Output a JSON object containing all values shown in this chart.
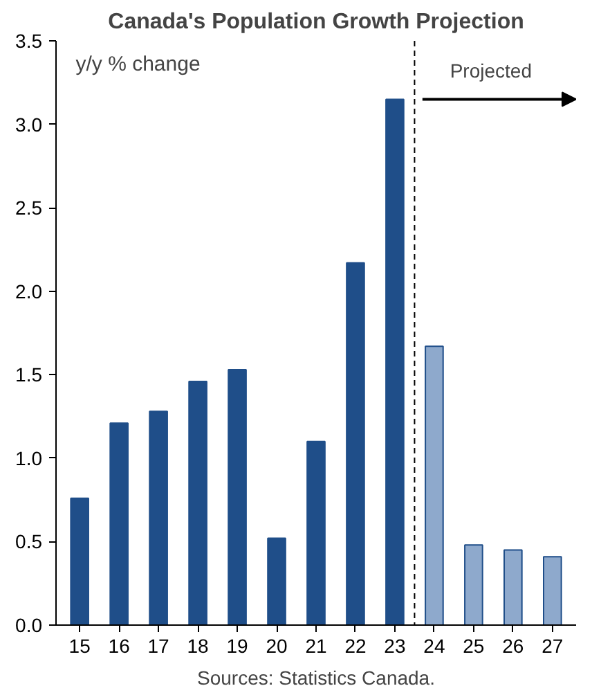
{
  "chart_data": {
    "type": "bar",
    "title": "Canada's Population Growth Projection",
    "x": [
      2015,
      2016,
      2017,
      2018,
      2019,
      2020,
      2021,
      2022,
      2023,
      2024,
      2025,
      2026,
      2027
    ],
    "values": [
      0.76,
      1.21,
      1.28,
      1.46,
      1.53,
      0.52,
      1.1,
      2.17,
      3.15,
      1.67,
      0.48,
      0.45,
      0.41
    ],
    "colors": [
      "#1f4e89",
      "#1f4e89",
      "#1f4e89",
      "#1f4e89",
      "#1f4e89",
      "#1f4e89",
      "#1f4e89",
      "#1f4e89",
      "#1f4e89",
      "#8ea9cc",
      "#8ea9cc",
      "#8ea9cc",
      "#8ea9cc"
    ],
    "xlim": [
      2014.4,
      2027.6
    ],
    "xticks": [
      {
        "value": 2015,
        "label": "15"
      },
      {
        "value": 2016,
        "label": "16"
      },
      {
        "value": 2017,
        "label": "17"
      },
      {
        "value": 2018,
        "label": "18"
      },
      {
        "value": 2019,
        "label": "19"
      },
      {
        "value": 2020,
        "label": "20"
      },
      {
        "value": 2021,
        "label": "21"
      },
      {
        "value": 2022,
        "label": "22"
      },
      {
        "value": 2023,
        "label": "23"
      },
      {
        "value": 2024,
        "label": "24"
      },
      {
        "value": 2025,
        "label": "25"
      },
      {
        "value": 2026,
        "label": "26"
      },
      {
        "value": 2027,
        "label": "27"
      }
    ],
    "ylim": [
      0,
      3.5
    ],
    "yticks": [
      {
        "value": 0,
        "label": "0.0"
      },
      {
        "value": 0.5,
        "label": "0.5"
      },
      {
        "value": 1,
        "label": "1.0"
      },
      {
        "value": 1.5,
        "label": "1.5"
      },
      {
        "value": 2,
        "label": "2.0"
      },
      {
        "value": 2.5,
        "label": "2.5"
      },
      {
        "value": 3,
        "label": "3.0"
      },
      {
        "value": 3.5,
        "label": "3.5"
      }
    ],
    "ref_lines": [
      {
        "axis": "x",
        "value": 2023.5,
        "label": "Projected",
        "line_style": "dashed",
        "color": "#000000"
      }
    ],
    "annotations": [
      "y/y % change",
      "Sources: Statistics Canada."
    ],
    "grid": false
  }
}
